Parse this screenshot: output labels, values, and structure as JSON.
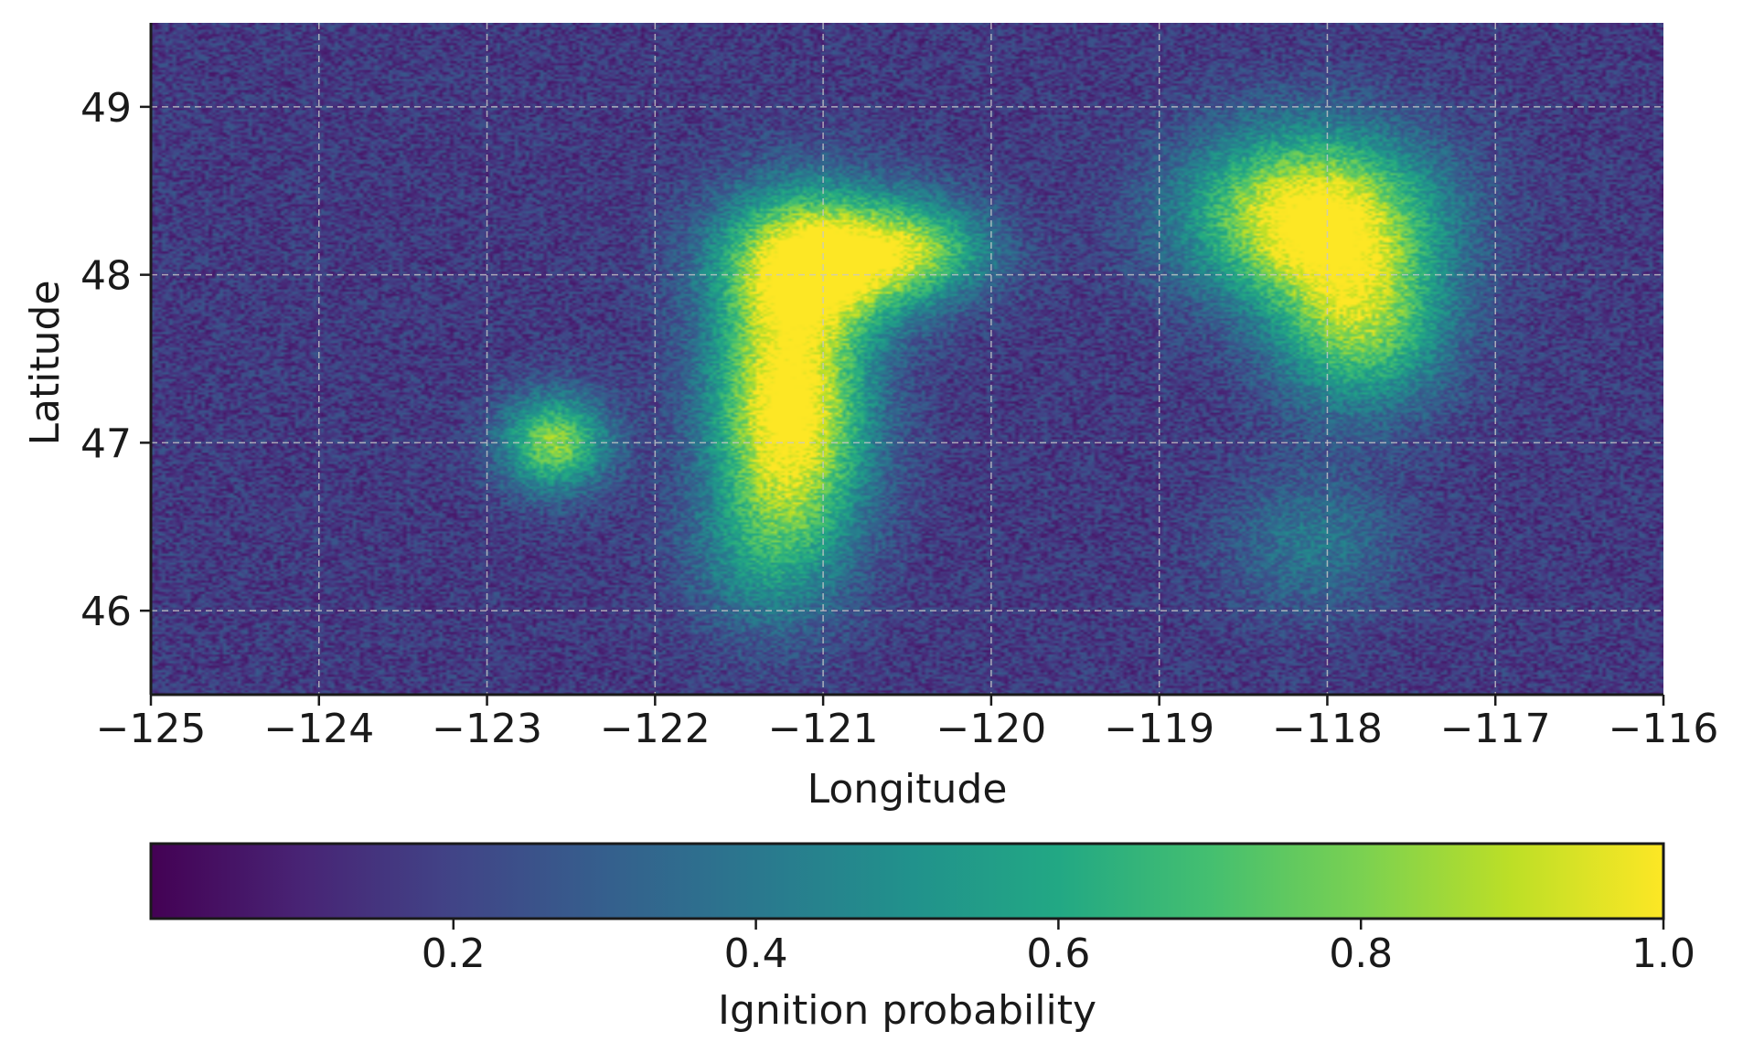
{
  "chart_data": {
    "type": "heatmap",
    "xlabel": "Longitude",
    "ylabel": "Latitude",
    "xlim": [
      -125,
      -116
    ],
    "ylim": [
      45.5,
      49.5
    ],
    "x_ticks": [
      -125,
      -124,
      -123,
      -122,
      -121,
      -120,
      -119,
      -118,
      -117,
      -116
    ],
    "x_tick_labels": [
      "−125",
      "−124",
      "−123",
      "−122",
      "−121",
      "−120",
      "−119",
      "−118",
      "−117",
      "−116"
    ],
    "y_ticks": [
      46,
      47,
      48,
      49
    ],
    "y_tick_labels": [
      "46",
      "47",
      "48",
      "49"
    ],
    "grid": true,
    "colormap": "viridis",
    "value_range": [
      0,
      1
    ],
    "hotspots": [
      {
        "lon": -122.6,
        "lat": 47.0,
        "peak": 0.85
      },
      {
        "lon": -121.2,
        "lat": 47.3,
        "peak": 1.0
      },
      {
        "lon": -121.0,
        "lat": 48.1,
        "peak": 1.0
      },
      {
        "lon": -120.4,
        "lat": 48.15,
        "peak": 0.8
      },
      {
        "lon": -118.0,
        "lat": 48.3,
        "peak": 1.0
      },
      {
        "lon": -117.8,
        "lat": 47.7,
        "peak": 0.9
      },
      {
        "lon": -118.1,
        "lat": 46.4,
        "peak": 0.55
      }
    ],
    "colorbar": {
      "label": "Ignition probability",
      "ticks": [
        0.2,
        0.4,
        0.6,
        0.8,
        1.0
      ],
      "tick_labels": [
        "0.2",
        "0.4",
        "0.6",
        "0.8",
        "1.0"
      ],
      "orientation": "horizontal",
      "placement": "bottom"
    }
  }
}
